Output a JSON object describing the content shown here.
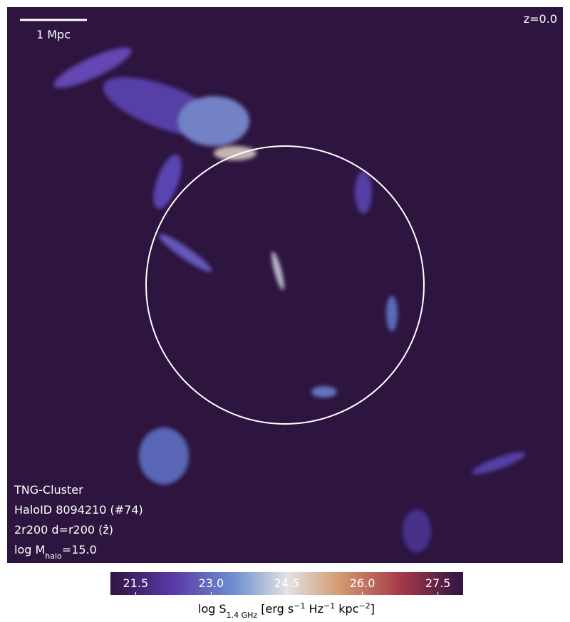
{
  "image": {
    "scale_label": "1 Mpc",
    "redshift": "z=0.0",
    "info": [
      [
        {
          "text": "TNG-Cluster"
        }
      ],
      [
        {
          "text": "HaloID 8094210 (#74)"
        }
      ],
      [
        {
          "text": "2r200 d=r200 (ẑ)"
        }
      ],
      [
        {
          "text": "log M"
        },
        {
          "sub": "halo"
        },
        {
          "text": "=15.0"
        }
      ]
    ]
  },
  "colorbar": {
    "range": [
      21.0,
      28.0
    ],
    "ticks": [
      21.5,
      {
        "value": 23,
        "label": "23.0"
      },
      24.5,
      {
        "value": 26,
        "label": "26.0"
      },
      27.5
    ],
    "label": [
      {
        "text": "log S"
      },
      {
        "sub": "1.4 GHz"
      },
      {
        "text": " [erg s"
      },
      {
        "sup": "−1"
      },
      {
        "text": " Hz"
      },
      {
        "sup": "−1"
      },
      {
        "text": " kpc"
      },
      {
        "sup": "−2"
      },
      {
        "text": "]"
      }
    ]
  }
}
